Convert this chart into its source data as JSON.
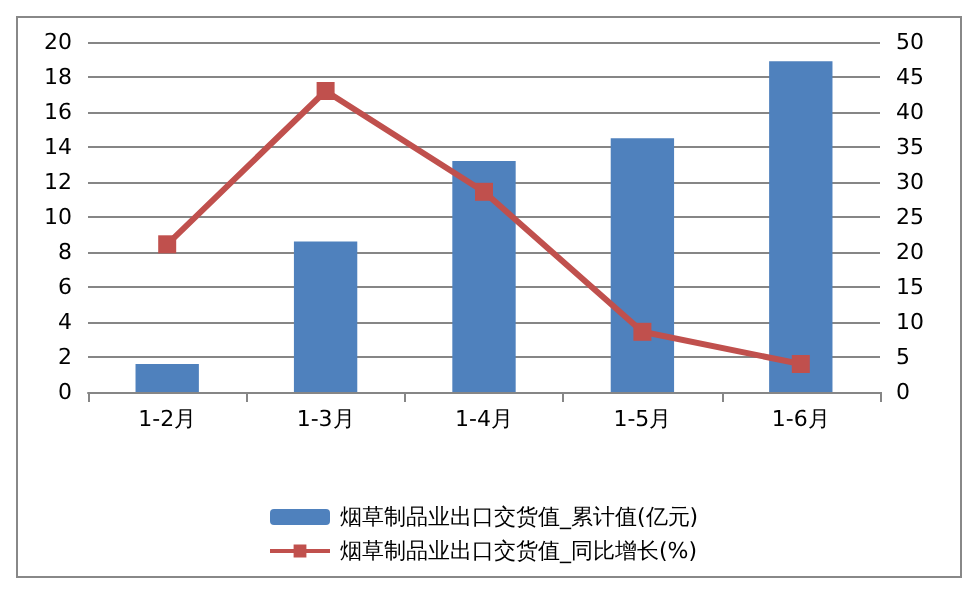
{
  "chart_data": {
    "type": "bar",
    "categories": [
      "1-2月",
      "1-3月",
      "1-4月",
      "1-5月",
      "1-6月"
    ],
    "series": [
      {
        "name": "烟草制品业出口交货值_累计值(亿元)",
        "color": "#4f81bd",
        "values": [
          1.6,
          8.6,
          13.2,
          14.5,
          18.9
        ]
      },
      {
        "name": "烟草制品业出口交货值_同比增长(%)",
        "type": "line",
        "axis": "y2",
        "color": "#c0504d",
        "values": [
          21.1,
          43.0,
          28.6,
          8.6,
          4.0
        ]
      }
    ],
    "ylim": [
      0,
      20
    ],
    "yticks": [
      0,
      2,
      4,
      6,
      8,
      10,
      12,
      14,
      16,
      18,
      20
    ],
    "y2lim": [
      0,
      50
    ],
    "y2ticks": [
      0,
      5,
      10,
      15,
      20,
      25,
      30,
      35,
      40,
      45,
      50
    ],
    "grid": "y",
    "legend": "bottom",
    "marker": "square",
    "line_style": "solid"
  }
}
